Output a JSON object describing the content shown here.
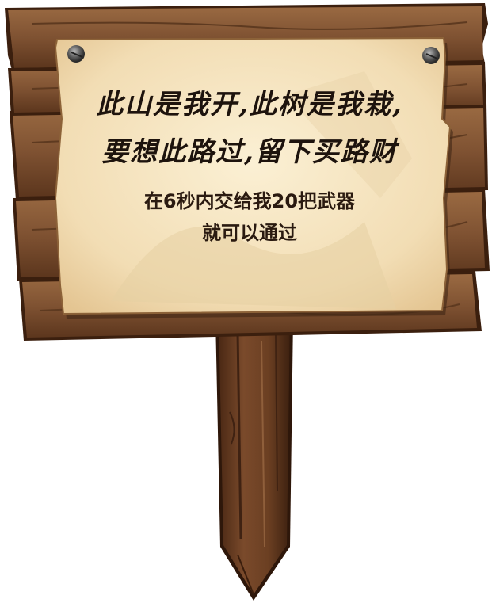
{
  "sign": {
    "rhyme_line_1": "此山是我开,此树是我栽,",
    "rhyme_line_2": "要想此路过,留下买路财",
    "instruction_line_1": "在6秒内交给我20把武器",
    "instruction_line_2": "就可以通过"
  },
  "colors": {
    "wood_dark": "#5a3119",
    "wood_mid": "#8a5a36",
    "wood_light": "#a8774b",
    "parchment": "#f6e5c2",
    "ink": "#1d130d"
  },
  "icons": [
    "nail-icon",
    "nail-icon"
  ]
}
